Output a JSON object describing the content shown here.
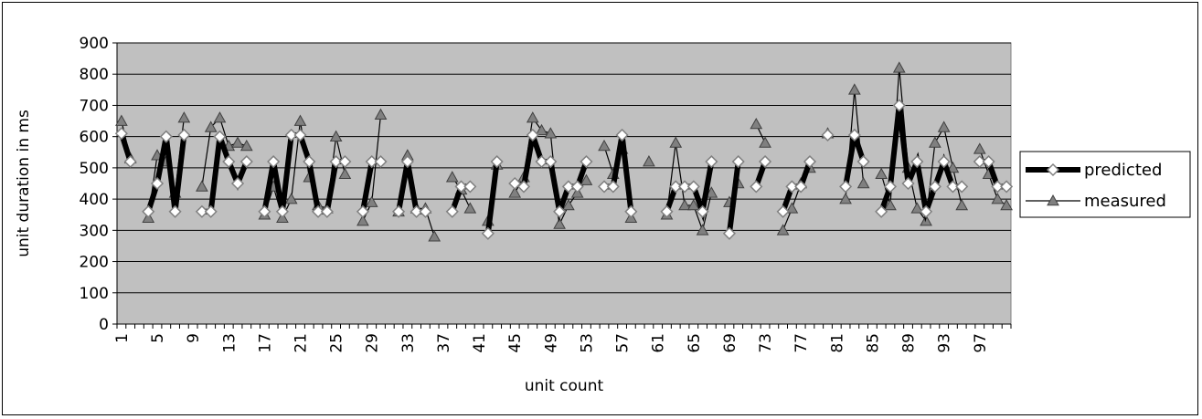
{
  "chart_data": {
    "type": "line",
    "title": "",
    "xlabel": "unit count",
    "ylabel": "unit duration in ms",
    "ylim": [
      0,
      900
    ],
    "yticks": [
      "0",
      "100",
      "200",
      "300",
      "400",
      "500",
      "600",
      "700",
      "800",
      "900"
    ],
    "x": [
      1,
      2,
      3,
      4,
      5,
      6,
      7,
      8,
      9,
      10,
      11,
      12,
      13,
      14,
      15,
      16,
      17,
      18,
      19,
      20,
      21,
      22,
      23,
      24,
      25,
      26,
      27,
      28,
      29,
      30,
      31,
      32,
      33,
      34,
      35,
      36,
      37,
      38,
      39,
      40,
      41,
      42,
      43,
      44,
      45,
      46,
      47,
      48,
      49,
      50,
      51,
      52,
      53,
      54,
      55,
      56,
      57,
      58,
      59,
      60,
      61,
      62,
      63,
      64,
      65,
      66,
      67,
      68,
      69,
      70,
      71,
      72,
      73,
      74,
      75,
      76,
      77,
      78,
      79,
      80,
      81,
      82,
      83,
      84,
      85,
      86,
      87,
      88,
      89,
      90,
      91,
      92,
      93,
      94,
      95,
      96,
      97,
      98,
      99,
      100
    ],
    "xticks": [
      "1",
      "5",
      "9",
      "13",
      "17",
      "21",
      "25",
      "29",
      "33",
      "37",
      "41",
      "45",
      "49",
      "53",
      "57",
      "61",
      "65",
      "69",
      "73",
      "77",
      "81",
      "85",
      "89",
      "93",
      "97"
    ],
    "grid": true,
    "legend_position": "right",
    "series": [
      {
        "name": "predicted",
        "color": "#000000",
        "values": [
          610,
          520,
          null,
          360,
          450,
          600,
          360,
          605,
          null,
          360,
          360,
          600,
          520,
          450,
          520,
          null,
          360,
          520,
          360,
          605,
          605,
          520,
          360,
          360,
          520,
          520,
          null,
          360,
          520,
          520,
          null,
          360,
          520,
          360,
          360,
          null,
          null,
          360,
          440,
          440,
          null,
          290,
          520,
          null,
          450,
          440,
          605,
          520,
          520,
          360,
          440,
          440,
          520,
          null,
          440,
          440,
          605,
          360,
          null,
          null,
          null,
          360,
          440,
          440,
          440,
          360,
          520,
          null,
          290,
          520,
          null,
          440,
          520,
          null,
          360,
          440,
          440,
          520,
          null,
          605,
          null,
          440,
          605,
          520,
          null,
          360,
          440,
          700,
          450,
          520,
          360,
          440,
          520,
          440,
          440,
          null,
          520,
          520,
          440,
          440
        ],
        "marker": "diamond"
      },
      {
        "name": "measured",
        "color": "#000000",
        "values": [
          650,
          530,
          null,
          340,
          540,
          520,
          420,
          660,
          null,
          440,
          630,
          660,
          570,
          580,
          570,
          null,
          350,
          440,
          340,
          400,
          650,
          470,
          380,
          370,
          600,
          480,
          null,
          330,
          390,
          670,
          null,
          360,
          540,
          370,
          370,
          280,
          null,
          470,
          430,
          370,
          null,
          330,
          510,
          null,
          420,
          470,
          660,
          620,
          610,
          320,
          380,
          420,
          460,
          null,
          570,
          480,
          560,
          340,
          null,
          520,
          null,
          350,
          580,
          380,
          380,
          300,
          420,
          null,
          390,
          450,
          null,
          640,
          580,
          null,
          300,
          370,
          450,
          500,
          null,
          610,
          null,
          400,
          750,
          450,
          null,
          480,
          380,
          820,
          500,
          370,
          330,
          580,
          630,
          500,
          380,
          null,
          560,
          480,
          400,
          380
        ],
        "marker": "triangle"
      }
    ]
  }
}
